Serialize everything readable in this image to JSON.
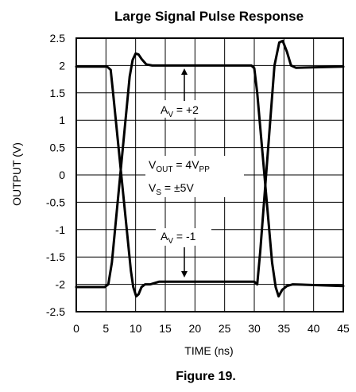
{
  "chart_data": {
    "type": "line",
    "title": "Large Signal Pulse Response",
    "xlabel": "TIME (ns)",
    "ylabel": "OUTPUT (V)",
    "xlim": [
      0,
      45
    ],
    "ylim": [
      -2.5,
      2.5
    ],
    "x_ticks": [
      "0",
      "5",
      "10",
      "15",
      "20",
      "25",
      "30",
      "35",
      "40",
      "45"
    ],
    "y_ticks": [
      "2.5",
      "2",
      "1.5",
      "1",
      "0.5",
      "0",
      "-0.5",
      "-1",
      "-1.5",
      "-2",
      "-2.5"
    ],
    "grid": true,
    "series": [
      {
        "x": [
          0,
          5.2,
          5.8,
          6.2,
          9.2,
          9.6,
          10.1,
          10.5,
          11.0,
          11.6,
          12.5,
          14,
          30.0,
          30.5,
          31.0,
          33.4,
          34.2,
          34.8,
          35.5,
          36.2,
          37,
          45
        ],
        "y": [
          1.98,
          1.98,
          1.92,
          1.5,
          -1.75,
          -2.05,
          -2.22,
          -2.18,
          -2.05,
          -2.0,
          -2.0,
          -1.95,
          -1.95,
          -2.0,
          -1.4,
          2.0,
          2.42,
          2.45,
          2.25,
          2.0,
          1.96,
          1.98
        ]
      },
      {
        "x": [
          0,
          4.8,
          5.4,
          6.0,
          9.0,
          9.5,
          10.0,
          10.5,
          11.0,
          11.8,
          12.8,
          14,
          29.5,
          30.0,
          30.5,
          33.0,
          33.6,
          34.1,
          34.7,
          35.5,
          36.5,
          45
        ],
        "y": [
          -2.05,
          -2.05,
          -2.0,
          -1.6,
          1.8,
          2.1,
          2.22,
          2.2,
          2.12,
          2.02,
          2.0,
          2.0,
          2.0,
          1.95,
          1.5,
          -1.6,
          -2.05,
          -2.22,
          -2.1,
          -2.03,
          -2.0,
          -2.03
        ]
      }
    ],
    "annotations": {
      "av_pos": {
        "main": "A",
        "sub": "V",
        "rest": " = +2"
      },
      "vout": {
        "main": "V",
        "sub": "OUT",
        "rest": " = 4V",
        "sub2": "PP"
      },
      "vs": {
        "main": "V",
        "sub": "S",
        "rest": " = ±5V"
      },
      "av_neg": {
        "main": "A",
        "sub": "V",
        "rest": " = -1"
      }
    },
    "caption": "Figure 19.",
    "line_color": "#000000"
  }
}
